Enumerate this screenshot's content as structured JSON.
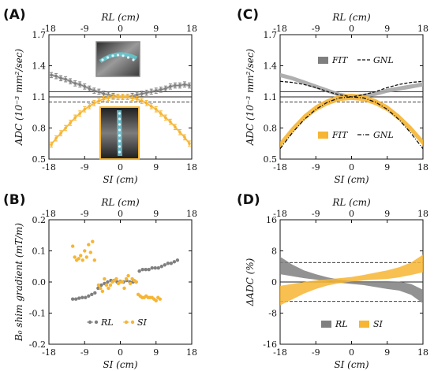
{
  "colors": {
    "gray": "#7f7f7f",
    "gray_light": "#a6a6a6",
    "orange": "#f6b532",
    "orange_dark": "#e8a321",
    "black": "#111111"
  },
  "icons": {
    "mri_sagittal": "spine-mri-sagittal-image",
    "mri_coronal": "spine-mri-coronal-image"
  },
  "chart_data": [
    {
      "panel": "(A)",
      "type": "line",
      "xlabel": "SI (cm)",
      "x2label": "RL (cm)",
      "ylabel": "ADC (10⁻³ mm²/sec)",
      "xlim": [
        -18,
        18
      ],
      "ylim": [
        0.5,
        1.7
      ],
      "xticks": [
        "-18",
        "-9",
        "0",
        "9",
        "18"
      ],
      "yticks": [
        "0.5",
        "0.8",
        "1.1",
        "1.4",
        "1.7"
      ],
      "hlines": [
        {
          "y": 1.15,
          "style": "solid"
        },
        {
          "y": 1.1,
          "style": "solid"
        },
        {
          "y": 1.05,
          "style": "dashed"
        }
      ],
      "series": [
        {
          "color": "gray",
          "x": [
            -17.4,
            -16.2,
            -15,
            -13.8,
            -12.6,
            -11.4,
            -10.2,
            -9,
            -7.8,
            -6.6,
            -5.4,
            -4.2,
            -3,
            -1.8,
            -0.6,
            0.6,
            1.8,
            3,
            4.2,
            5.4,
            6.6,
            7.8,
            9,
            10.2,
            11.4,
            12.6,
            13.8,
            15,
            16.2,
            17.4
          ],
          "y": [
            1.31,
            1.3,
            1.28,
            1.27,
            1.25,
            1.23,
            1.22,
            1.2,
            1.18,
            1.16,
            1.15,
            1.13,
            1.12,
            1.11,
            1.1,
            1.1,
            1.1,
            1.11,
            1.12,
            1.13,
            1.14,
            1.15,
            1.16,
            1.17,
            1.18,
            1.2,
            1.21,
            1.21,
            1.22,
            1.21
          ]
        },
        {
          "color": "orange",
          "x": [
            -17.4,
            -16.2,
            -15,
            -13.8,
            -12.6,
            -11.4,
            -10.2,
            -9,
            -7.8,
            -6.6,
            -5.4,
            -4.2,
            -3,
            -1.8,
            -0.6,
            0.6,
            1.8,
            3,
            4.2,
            5.4,
            6.6,
            7.8,
            9,
            10.2,
            11.4,
            12.6,
            13.8,
            15,
            16.2,
            17.4
          ],
          "y": [
            0.64,
            0.7,
            0.75,
            0.8,
            0.85,
            0.9,
            0.94,
            0.98,
            1.01,
            1.04,
            1.06,
            1.08,
            1.09,
            1.1,
            1.1,
            1.1,
            1.1,
            1.09,
            1.08,
            1.06,
            1.04,
            1.01,
            0.98,
            0.94,
            0.9,
            0.86,
            0.81,
            0.76,
            0.71,
            0.65
          ]
        }
      ]
    },
    {
      "panel": "(B)",
      "type": "scatter",
      "xlabel": "SI (cm)",
      "x2label": "RL (cm)",
      "ylabel": "B₀ shim gradient (mT/m)",
      "xlim": [
        -18,
        18
      ],
      "ylim": [
        -0.2,
        0.2
      ],
      "xticks": [
        "-18",
        "-9",
        "0",
        "9",
        "18"
      ],
      "yticks": [
        "-0.2",
        "-0.1",
        "0.0",
        "0.1",
        "0.2"
      ],
      "legend": [
        {
          "label": "RL",
          "color": "gray"
        },
        {
          "label": "SI",
          "color": "orange"
        }
      ],
      "series": [
        {
          "name": "RL",
          "color": "gray",
          "x": [
            -12,
            -11.2,
            -10.4,
            -9.6,
            -8.8,
            -8,
            -7.2,
            -6.4,
            -5.6,
            -4.8,
            -4,
            -3.2,
            -2.4,
            -1.6,
            -0.8,
            0,
            0.8,
            1.6,
            2.4,
            3.2,
            4,
            4.8,
            5.6,
            6.4,
            7.2,
            8,
            8.8,
            9.6,
            10.4,
            11.2,
            12,
            12.8,
            13.6,
            14.4
          ],
          "y": [
            -0.055,
            -0.055,
            -0.052,
            -0.05,
            -0.05,
            -0.045,
            -0.04,
            -0.035,
            -0.02,
            -0.01,
            -0.005,
            0.0,
            0.005,
            0.005,
            0.0,
            0.002,
            0.0,
            0.005,
            0.0,
            0.0,
            0.0,
            0.035,
            0.04,
            0.04,
            0.04,
            0.045,
            0.045,
            0.045,
            0.05,
            0.055,
            0.06,
            0.06,
            0.065,
            0.07
          ]
        },
        {
          "name": "SI",
          "color": "orange",
          "x": [
            -12,
            -11.5,
            -11,
            -10.5,
            -10,
            -9.5,
            -9,
            -8.5,
            -8,
            -7.5,
            -7,
            -6.5,
            -5.5,
            -5,
            -4.5,
            -4,
            -3.5,
            -3,
            -2.5,
            -2,
            -1.5,
            -1,
            -0.5,
            0,
            0.5,
            1,
            1.5,
            2,
            2.5,
            3,
            3.5,
            4,
            4.5,
            5,
            5.5,
            6,
            6.5,
            7,
            7.5,
            8,
            8.5,
            9,
            9.5,
            10
          ],
          "y": [
            0.115,
            0.08,
            0.07,
            0.075,
            0.085,
            0.07,
            0.1,
            0.08,
            0.12,
            0.095,
            0.13,
            0.07,
            -0.01,
            -0.02,
            -0.03,
            0.01,
            -0.01,
            -0.02,
            -0.01,
            0.0,
            0.005,
            0.01,
            -0.005,
            0.0,
            0.0,
            -0.02,
            0.01,
            0.02,
            -0.005,
            0.01,
            0.005,
            0.0,
            -0.04,
            -0.045,
            -0.05,
            -0.05,
            -0.045,
            -0.05,
            -0.05,
            -0.05,
            -0.055,
            -0.06,
            -0.05,
            -0.055
          ]
        }
      ]
    },
    {
      "panel": "(C)",
      "type": "line",
      "xlabel": "SI (cm)",
      "x2label": "RL (cm)",
      "ylabel": "ADC (10⁻³ mm²/sec)",
      "xlim": [
        -18,
        18
      ],
      "ylim": [
        0.5,
        1.7
      ],
      "xticks": [
        "-18",
        "-9",
        "0",
        "9",
        "18"
      ],
      "yticks": [
        "0.5",
        "0.8",
        "1.1",
        "1.4",
        "1.7"
      ],
      "hlines": [
        {
          "y": 1.15,
          "style": "solid"
        },
        {
          "y": 1.1,
          "style": "solid"
        },
        {
          "y": 1.05,
          "style": "dashed"
        }
      ],
      "legend": [
        {
          "label": "FIT",
          "color": "gray",
          "kind": "band"
        },
        {
          "label": "GNL",
          "color": "black",
          "kind": "dashed"
        },
        {
          "label": "FIT",
          "color": "orange",
          "kind": "band"
        },
        {
          "label": "GNL",
          "color": "black",
          "kind": "dashdot"
        }
      ],
      "series": [
        {
          "name": "FIT",
          "color": "gray",
          "x": [
            -18,
            -15,
            -12,
            -9,
            -6,
            -3,
            0,
            3,
            6,
            9,
            12,
            15,
            18
          ],
          "y": [
            1.31,
            1.28,
            1.24,
            1.2,
            1.16,
            1.12,
            1.1,
            1.11,
            1.13,
            1.16,
            1.18,
            1.2,
            1.22
          ]
        },
        {
          "name": "GNL",
          "color": "black",
          "x": [
            -18,
            -15,
            -12,
            -9,
            -6,
            -3,
            0,
            3,
            6,
            9,
            12,
            15,
            18
          ],
          "y": [
            1.25,
            1.24,
            1.22,
            1.19,
            1.15,
            1.12,
            1.1,
            1.12,
            1.15,
            1.19,
            1.22,
            1.24,
            1.25
          ]
        },
        {
          "name": "FIT",
          "color": "orange",
          "x": [
            -18,
            -15,
            -12,
            -9,
            -6,
            -3,
            0,
            3,
            6,
            9,
            12,
            15,
            18
          ],
          "y": [
            0.64,
            0.78,
            0.9,
            0.99,
            1.05,
            1.09,
            1.1,
            1.09,
            1.05,
            0.99,
            0.9,
            0.79,
            0.66
          ]
        },
        {
          "name": "GNL",
          "color": "black",
          "x": [
            -18,
            -15,
            -12,
            -9,
            -6,
            -3,
            0,
            3,
            6,
            9,
            12,
            15,
            18
          ],
          "y": [
            0.6,
            0.75,
            0.88,
            0.98,
            1.05,
            1.09,
            1.1,
            1.09,
            1.05,
            0.98,
            0.88,
            0.75,
            0.6
          ]
        }
      ]
    },
    {
      "panel": "(D)",
      "type": "area",
      "xlabel": "SI (cm)",
      "x2label": "RL (cm)",
      "ylabel": "ΔADC (%)",
      "xlim": [
        -18,
        18
      ],
      "ylim": [
        -16,
        16
      ],
      "xticks": [
        "-18",
        "-9",
        "0",
        "9",
        "18"
      ],
      "yticks": [
        "-16",
        "-8",
        "0",
        "8",
        "16"
      ],
      "hlines": [
        {
          "y": 5,
          "style": "dashed"
        },
        {
          "y": 0,
          "style": "solid"
        },
        {
          "y": -5,
          "style": "dashed"
        }
      ],
      "legend": [
        {
          "label": "RL",
          "color": "gray"
        },
        {
          "label": "SI",
          "color": "orange"
        }
      ],
      "series": [
        {
          "name": "RL",
          "color": "gray",
          "x": [
            -18,
            -15,
            -12,
            -9,
            -6,
            -3,
            0,
            3,
            6,
            9,
            12,
            15,
            18
          ],
          "upper": [
            6.5,
            4.5,
            3,
            2,
            1.2,
            0.6,
            0.3,
            0.2,
            0.2,
            0.2,
            0.1,
            -0.5,
            -2
          ],
          "lower": [
            2,
            1.5,
            1,
            0.6,
            0.2,
            -0.2,
            -0.5,
            -0.8,
            -1.3,
            -1.8,
            -2.2,
            -3.3,
            -5.5
          ]
        },
        {
          "name": "SI",
          "color": "orange",
          "x": [
            -18,
            -15,
            -12,
            -9,
            -6,
            -3,
            0,
            3,
            6,
            9,
            12,
            15,
            18
          ],
          "upper": [
            -1,
            -0.5,
            0,
            0.4,
            0.7,
            1,
            1.3,
            1.8,
            2.4,
            3,
            3.8,
            5,
            7
          ],
          "lower": [
            -6,
            -4.5,
            -3,
            -1.8,
            -0.9,
            -0.3,
            0.1,
            0.4,
            0.6,
            0.8,
            1.2,
            1.8,
            2.5
          ]
        }
      ]
    }
  ]
}
